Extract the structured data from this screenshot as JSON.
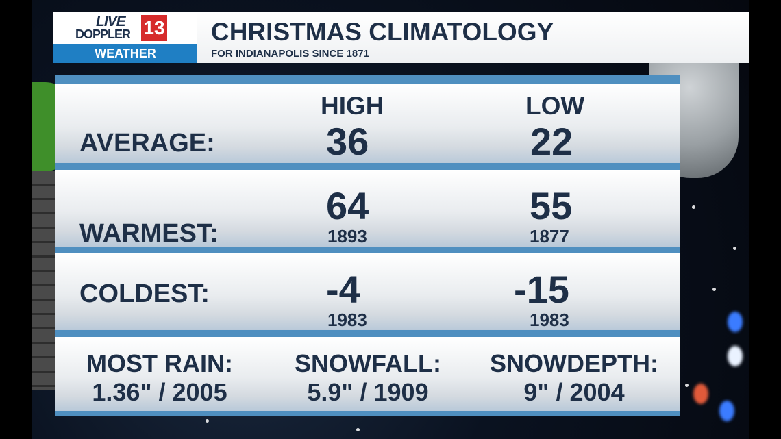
{
  "branding": {
    "live": "LIVE",
    "doppler": "DOPPLER",
    "channel_number": "13",
    "section": "WEATHER"
  },
  "header": {
    "title": "CHRISTMAS CLIMATOLOGY",
    "subtitle": "FOR INDIANAPOLIS SINCE 1871"
  },
  "columns": {
    "high": "HIGH",
    "low": "LOW"
  },
  "rows": {
    "average": {
      "label": "AVERAGE:",
      "high": "36",
      "low": "22"
    },
    "warmest": {
      "label": "WARMEST:",
      "high": "64",
      "high_year": "1893",
      "low": "55",
      "low_year": "1877"
    },
    "coldest": {
      "label": "COLDEST:",
      "high": "-4",
      "high_year": "1983",
      "low": "-15",
      "low_year": "1983"
    }
  },
  "records": {
    "rain": {
      "label": "MOST RAIN:",
      "value": "1.36\" / 2005"
    },
    "snowfall": {
      "label": "SNOWFALL:",
      "value": "5.9\" / 1909"
    },
    "snowdepth": {
      "label": "SNOWDEPTH:",
      "value": "9\" / 2004"
    }
  },
  "colors": {
    "text": "#1e2f47",
    "band": "#4f8fc0",
    "brand_blue": "#1f7fc4",
    "brand_red": "#d62b2b"
  }
}
